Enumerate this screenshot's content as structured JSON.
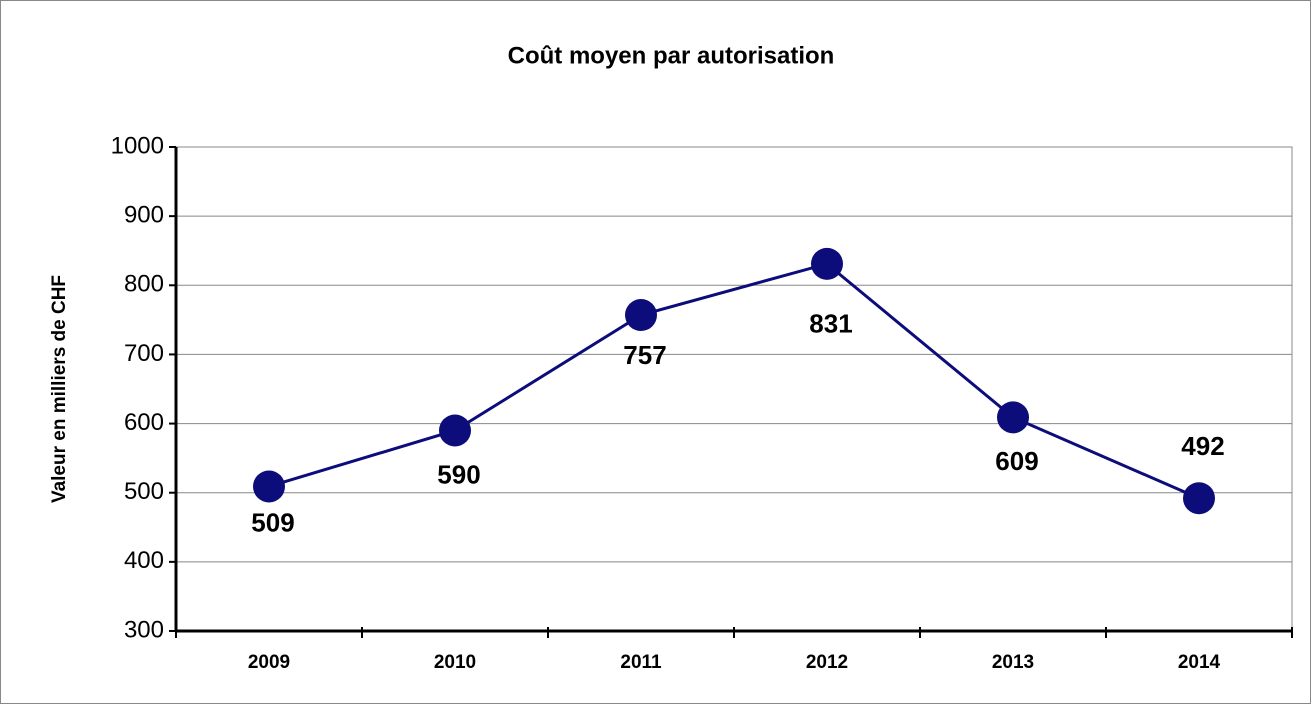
{
  "chart_data": {
    "type": "line",
    "title": "Coût moyen par autorisation",
    "y_label": "Valeur en milliers de CHF",
    "categories": [
      "2009",
      "2010",
      "2011",
      "2012",
      "2013",
      "2014"
    ],
    "series": [
      {
        "name": "Coût moyen",
        "color": "#0c0c7a",
        "values": [
          509,
          590,
          757,
          831,
          609,
          492
        ]
      }
    ],
    "ylim": [
      300,
      1000
    ],
    "yticks": [
      300,
      400,
      500,
      600,
      700,
      800,
      900,
      1000
    ],
    "grid": true
  }
}
